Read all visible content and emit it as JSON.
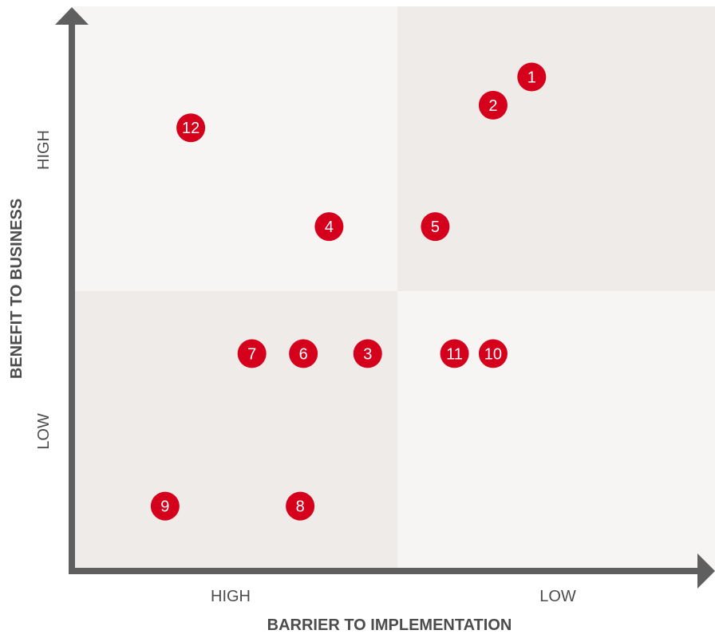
{
  "chart_data": {
    "type": "scatter",
    "title": "",
    "xlabel": "BARRIER TO IMPLEMENTATION",
    "ylabel": "BENEFIT TO BUSINESS",
    "x_ticks": [
      "HIGH",
      "LOW"
    ],
    "y_ticks": [
      "HIGH",
      "LOW"
    ],
    "xlim": [
      0,
      100
    ],
    "ylim": [
      0,
      100
    ],
    "grid": false,
    "legend": "none",
    "colors": {
      "marker": "#d5001c",
      "axis": "#5f5f5f",
      "quadrant_dark": "#efebe8",
      "quadrant_light": "#f6f5f3"
    },
    "points": [
      {
        "label": "1",
        "x": 71.5,
        "y": 87.5
      },
      {
        "label": "2",
        "x": 65.5,
        "y": 82.5
      },
      {
        "label": "3",
        "x": 46.0,
        "y": 38.5
      },
      {
        "label": "4",
        "x": 40.0,
        "y": 61.0
      },
      {
        "label": "5",
        "x": 56.5,
        "y": 61.0
      },
      {
        "label": "6",
        "x": 36.0,
        "y": 38.5
      },
      {
        "label": "7",
        "x": 28.0,
        "y": 38.5
      },
      {
        "label": "8",
        "x": 35.5,
        "y": 11.5
      },
      {
        "label": "9",
        "x": 14.5,
        "y": 11.5
      },
      {
        "label": "10",
        "x": 65.5,
        "y": 38.5
      },
      {
        "label": "11",
        "x": 59.5,
        "y": 38.5
      },
      {
        "label": "12",
        "x": 18.5,
        "y": 78.5
      }
    ]
  }
}
